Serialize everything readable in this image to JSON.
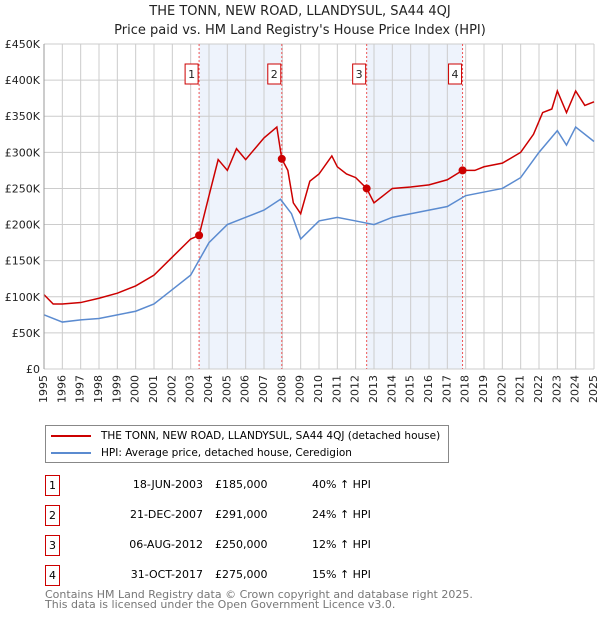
{
  "chart_data": {
    "type": "line",
    "title": "THE TONN, NEW ROAD, LLANDYSUL, SA44 4QJ",
    "subtitle": "Price paid vs. HM Land Registry's House Price Index (HPI)",
    "xlim": [
      1995,
      2025
    ],
    "ylim": [
      0,
      450000
    ],
    "yticks": [
      {
        "v": 0,
        "l": "£0"
      },
      {
        "v": 50000,
        "l": "£50K"
      },
      {
        "v": 100000,
        "l": "£100K"
      },
      {
        "v": 150000,
        "l": "£150K"
      },
      {
        "v": 200000,
        "l": "£200K"
      },
      {
        "v": 250000,
        "l": "£250K"
      },
      {
        "v": 300000,
        "l": "£300K"
      },
      {
        "v": 350000,
        "l": "£350K"
      },
      {
        "v": 400000,
        "l": "£400K"
      },
      {
        "v": 450000,
        "l": "£450K"
      }
    ],
    "xticks": [
      "1995",
      "1996",
      "1997",
      "1998",
      "1999",
      "2000",
      "2001",
      "2002",
      "2003",
      "2004",
      "2005",
      "2006",
      "2007",
      "2008",
      "2009",
      "2010",
      "2011",
      "2012",
      "2013",
      "2014",
      "2015",
      "2016",
      "2017",
      "2018",
      "2019",
      "2020",
      "2021",
      "2022",
      "2023",
      "2024",
      "2025"
    ],
    "grid": true,
    "shaded": [
      [
        2003.46,
        2007.97
      ],
      [
        2012.6,
        2017.83
      ]
    ],
    "series": [
      {
        "name": "THE TONN, NEW ROAD, LLANDYSUL, SA44 4QJ (detached house)",
        "color": "#cc0000",
        "x": [
          1995,
          1995.5,
          1996,
          1997,
          1998,
          1999,
          2000,
          2001,
          2002,
          2003,
          2003.46,
          2004,
          2004.5,
          2005,
          2005.5,
          2006,
          2006.5,
          2007,
          2007.7,
          2007.97,
          2008.3,
          2008.6,
          2009,
          2009.5,
          2010,
          2010.7,
          2011,
          2011.5,
          2012,
          2012.6,
          2013,
          2013.5,
          2014,
          2015,
          2016,
          2017,
          2017.83,
          2018.5,
          2019,
          2020,
          2021,
          2021.7,
          2022.2,
          2022.7,
          2023,
          2023.5,
          2024,
          2024.5,
          2025
        ],
        "y": [
          103000,
          90000,
          90000,
          92000,
          98000,
          105000,
          115000,
          130000,
          155000,
          180000,
          185000,
          240000,
          290000,
          275000,
          305000,
          290000,
          305000,
          320000,
          335000,
          291000,
          275000,
          230000,
          215000,
          260000,
          270000,
          295000,
          280000,
          270000,
          265000,
          250000,
          230000,
          240000,
          250000,
          252000,
          255000,
          262000,
          275000,
          275000,
          280000,
          285000,
          300000,
          325000,
          355000,
          360000,
          385000,
          355000,
          385000,
          365000,
          370000
        ]
      },
      {
        "name": "HPI: Average price, detached house, Ceredigion",
        "color": "#5b8bd0",
        "x": [
          1995,
          1996,
          1997,
          1998,
          1999,
          2000,
          2001,
          2002,
          2003,
          2004,
          2005,
          2006,
          2007,
          2007.9,
          2008.5,
          2009,
          2010,
          2011,
          2012,
          2013,
          2014,
          2015,
          2016,
          2017,
          2018,
          2019,
          2020,
          2021,
          2022,
          2023,
          2023.5,
          2024,
          2025
        ],
        "y": [
          75000,
          65000,
          68000,
          70000,
          75000,
          80000,
          90000,
          110000,
          130000,
          175000,
          200000,
          210000,
          220000,
          235000,
          215000,
          180000,
          205000,
          210000,
          205000,
          200000,
          210000,
          215000,
          220000,
          225000,
          240000,
          245000,
          250000,
          265000,
          300000,
          330000,
          310000,
          335000,
          315000
        ]
      }
    ],
    "sales": [
      {
        "n": "1",
        "x": 2003.46,
        "y": 185000,
        "date": "18-JUN-2003",
        "price": "£185,000",
        "hpi": "40% ↑ HPI"
      },
      {
        "n": "2",
        "x": 2007.97,
        "y": 291000,
        "date": "21-DEC-2007",
        "price": "£291,000",
        "hpi": "24% ↑ HPI"
      },
      {
        "n": "3",
        "x": 2012.6,
        "y": 250000,
        "date": "06-AUG-2012",
        "price": "£250,000",
        "hpi": "12% ↑ HPI"
      },
      {
        "n": "4",
        "x": 2017.83,
        "y": 275000,
        "date": "31-OCT-2017",
        "price": "£275,000",
        "hpi": "15% ↑ HPI"
      }
    ]
  },
  "footer": {
    "line1": "Contains HM Land Registry data © Crown copyright and database right 2025.",
    "line2": "This data is licensed under the Open Government Licence v3.0."
  }
}
